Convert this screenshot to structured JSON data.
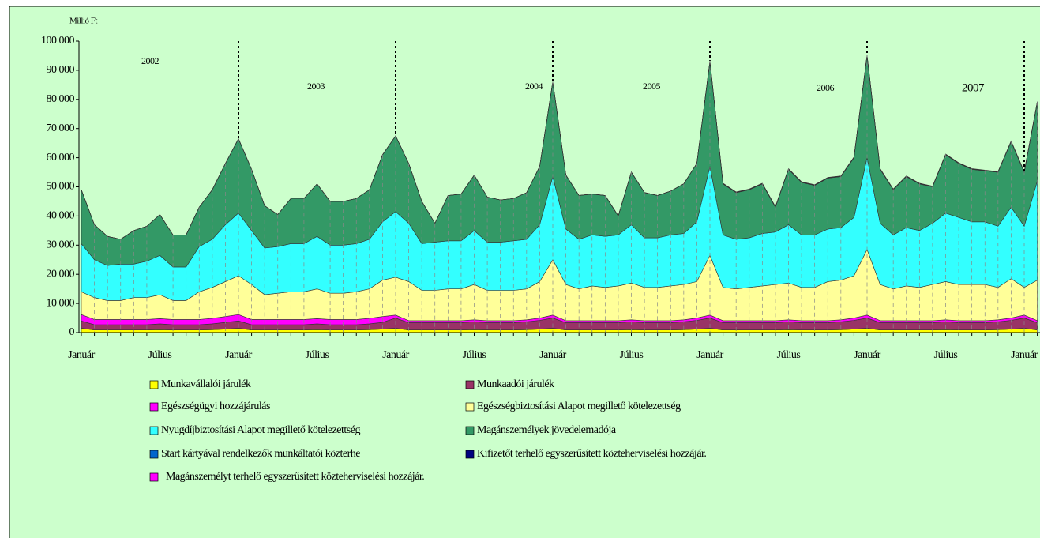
{
  "chart_data": {
    "type": "stacked_area",
    "y_unit": "Millió Ft",
    "categories": [
      "Január",
      null,
      null,
      null,
      null,
      null,
      "Július",
      null,
      null,
      null,
      null,
      null,
      "Január",
      null,
      null,
      null,
      null,
      null,
      "Július",
      null,
      null,
      null,
      null,
      null,
      "Január",
      null,
      null,
      null,
      null,
      null,
      "Július",
      null,
      null,
      null,
      null,
      null,
      "Január",
      null,
      null,
      null,
      null,
      null,
      "Július",
      null,
      null,
      null,
      null,
      null,
      "Január",
      null,
      null,
      null,
      null,
      null,
      "Július",
      null,
      null,
      null,
      null,
      null,
      "Január",
      null,
      null,
      null,
      null,
      null,
      "Július",
      null,
      null,
      null,
      null,
      null,
      "Január",
      null
    ],
    "annotations": [
      "2002",
      "2003",
      "2004",
      "2005",
      "2006",
      "2007"
    ],
    "ylim": [
      0,
      100000
    ],
    "yticks": [
      0,
      {
        "value": 10000,
        "label": "10 000"
      },
      {
        "value": 20000,
        "label": "20 000"
      },
      {
        "value": 30000,
        "label": "30 000"
      },
      {
        "value": 40000,
        "label": "40 000"
      },
      {
        "value": 50000,
        "label": "50 000"
      },
      {
        "value": 60000,
        "label": "60 000"
      },
      {
        "value": 70000,
        "label": "70 000"
      },
      {
        "value": 80000,
        "label": "80 000"
      },
      {
        "value": 90000,
        "label": "90 000"
      },
      {
        "value": 100000,
        "label": "100 000"
      }
    ],
    "series": [
      {
        "name": "Munkavállalói járulék",
        "color": "#ffff00",
        "values": [
          1500,
          900,
          900,
          900,
          900,
          900,
          1000,
          900,
          900,
          900,
          1000,
          1200,
          1500,
          900,
          900,
          900,
          900,
          900,
          1000,
          900,
          900,
          900,
          1000,
          1200,
          1500,
          900,
          900,
          900,
          900,
          900,
          1000,
          900,
          900,
          900,
          1000,
          1200,
          1500,
          900,
          900,
          900,
          900,
          900,
          1000,
          900,
          900,
          900,
          1000,
          1200,
          1500,
          900,
          900,
          900,
          900,
          900,
          1000,
          900,
          900,
          900,
          1000,
          1200,
          1500,
          900,
          900,
          900,
          900,
          900,
          1000,
          900,
          900,
          900,
          1000,
          1200,
          1500,
          900
        ]
      },
      {
        "name": "Munkaadói járulék",
        "color": "#993366",
        "values": [
          2500,
          1800,
          1800,
          1800,
          1800,
          1800,
          2000,
          1800,
          1800,
          1800,
          2000,
          2300,
          2500,
          1800,
          1800,
          1800,
          1800,
          1800,
          2000,
          1800,
          1800,
          1800,
          2000,
          2300,
          3500,
          2500,
          2500,
          2500,
          2500,
          2500,
          2700,
          2500,
          2500,
          2500,
          2700,
          3000,
          3500,
          2500,
          2500,
          2500,
          2500,
          2500,
          2700,
          2500,
          2500,
          2500,
          2700,
          3000,
          3500,
          2500,
          2500,
          2500,
          2500,
          2500,
          2700,
          2500,
          2500,
          2500,
          2700,
          3000,
          3500,
          2500,
          2500,
          2500,
          2500,
          2500,
          2700,
          2500,
          2500,
          2500,
          2700,
          3000,
          3500,
          2500
        ]
      },
      {
        "name": "Egészségügyi hozzájárulás",
        "color": "#ff00ff",
        "values": [
          2200,
          1800,
          1800,
          1800,
          1800,
          1800,
          1800,
          1800,
          1800,
          1800,
          1900,
          2000,
          2200,
          1800,
          1800,
          1800,
          1800,
          1800,
          1800,
          1800,
          1800,
          1800,
          1900,
          2000,
          1000,
          700,
          700,
          700,
          700,
          700,
          700,
          700,
          700,
          700,
          700,
          800,
          1000,
          700,
          700,
          700,
          700,
          700,
          700,
          700,
          700,
          700,
          700,
          800,
          1000,
          700,
          700,
          700,
          700,
          700,
          700,
          700,
          700,
          700,
          700,
          800,
          1000,
          700,
          700,
          700,
          700,
          700,
          700,
          700,
          700,
          700,
          700,
          800,
          1000,
          700
        ]
      },
      {
        "name": "Egészségbiztosítási Alapot megillető kötelezettség",
        "color": "#ffff99",
        "values": [
          7800,
          7500,
          6500,
          6500,
          7500,
          7500,
          8200,
          6500,
          6500,
          9500,
          10600,
          12000,
          13300,
          12000,
          8500,
          9000,
          9500,
          9500,
          10200,
          9000,
          9000,
          9500,
          10100,
          12500,
          13000,
          13400,
          10400,
          10400,
          10900,
          10900,
          12100,
          10400,
          10400,
          10400,
          10600,
          12500,
          19000,
          12400,
          10900,
          11900,
          11400,
          11900,
          12600,
          11400,
          11400,
          11900,
          12100,
          12500,
          20500,
          11400,
          10900,
          11400,
          11900,
          12400,
          12600,
          11400,
          11400,
          13400,
          13600,
          14500,
          22500,
          12400,
          10900,
          11900,
          11400,
          12400,
          13100,
          12400,
          12400,
          12400,
          11100,
          13500,
          9500,
          13900
        ]
      },
      {
        "name": "Nyugdíjbiztosítási Alapot megillető kötelezettség",
        "color": "#33ffff",
        "values": [
          16500,
          13000,
          12000,
          12500,
          11500,
          12500,
          13500,
          11500,
          11500,
          15500,
          16500,
          19500,
          21500,
          18500,
          16000,
          16000,
          16500,
          16500,
          18000,
          16500,
          16500,
          16500,
          17000,
          20000,
          22500,
          20000,
          16000,
          16500,
          16500,
          16500,
          18500,
          16500,
          16500,
          17000,
          17000,
          19500,
          28500,
          19000,
          17000,
          17500,
          17500,
          17500,
          20000,
          17000,
          17000,
          17500,
          17500,
          20500,
          30500,
          18000,
          17000,
          17000,
          18000,
          18000,
          20000,
          18000,
          18000,
          18000,
          18000,
          20000,
          31500,
          21000,
          18500,
          20000,
          19500,
          21000,
          23500,
          23000,
          21500,
          21500,
          21000,
          24500,
          21000,
          34000
        ]
      },
      {
        "name": "Magánszemélyek jövedelemadója",
        "color": "#339966",
        "values": [
          18500,
          12000,
          10000,
          8500,
          11500,
          12000,
          14000,
          11000,
          11000,
          13500,
          17000,
          21000,
          25500,
          21000,
          14500,
          11000,
          15500,
          15500,
          18000,
          15000,
          15000,
          15500,
          17000,
          23000,
          26000,
          20500,
          14500,
          6500,
          15500,
          16000,
          19000,
          15500,
          14500,
          14500,
          16000,
          20000,
          32500,
          18500,
          15000,
          14000,
          14000,
          6500,
          18000,
          15500,
          14500,
          15000,
          17000,
          20000,
          36000,
          17500,
          16000,
          16500,
          17000,
          8500,
          19000,
          18000,
          17000,
          17500,
          17500,
          20500,
          35000,
          18500,
          15500,
          17500,
          16000,
          12500,
          20000,
          18500,
          18000,
          17500,
          18500,
          22500,
          18500,
          27000
        ]
      },
      {
        "name": "Start kártyával rendelkezők munkáltatói közterhe",
        "color": "#0066cc",
        "values": [
          0,
          0,
          0,
          0,
          0,
          0,
          0,
          0,
          0,
          0,
          0,
          0,
          0,
          0,
          0,
          0,
          0,
          0,
          0,
          0,
          0,
          0,
          0,
          0,
          0,
          0,
          0,
          0,
          0,
          0,
          0,
          0,
          0,
          0,
          0,
          0,
          50,
          50,
          50,
          50,
          50,
          50,
          50,
          50,
          50,
          50,
          50,
          50,
          50,
          50,
          50,
          50,
          50,
          50,
          50,
          50,
          50,
          50,
          50,
          50,
          50,
          50,
          50,
          50,
          50,
          50,
          50,
          50,
          50,
          50,
          50,
          50,
          50,
          50
        ]
      },
      {
        "name": "Kifizetőt terhelő egyszerűsített közteherviselési hozzájár.",
        "color": "#000080",
        "values": [
          0,
          0,
          0,
          0,
          0,
          0,
          0,
          0,
          0,
          0,
          0,
          0,
          0,
          0,
          0,
          0,
          0,
          0,
          0,
          0,
          0,
          0,
          0,
          0,
          0,
          0,
          0,
          0,
          0,
          0,
          0,
          0,
          0,
          0,
          0,
          0,
          0,
          0,
          0,
          0,
          0,
          0,
          0,
          0,
          0,
          0,
          0,
          0,
          100,
          100,
          100,
          100,
          100,
          100,
          100,
          100,
          100,
          100,
          100,
          100,
          100,
          100,
          100,
          100,
          100,
          100,
          100,
          100,
          100,
          100,
          100,
          100,
          100,
          100
        ]
      },
      {
        "name": "Magánszemélyt terhelő egyszerűsített közteherviselési hozzájár.",
        "color": "#ff00ff",
        "values": [
          0,
          0,
          0,
          0,
          0,
          0,
          0,
          0,
          0,
          0,
          0,
          0,
          0,
          0,
          0,
          0,
          0,
          0,
          0,
          0,
          0,
          0,
          0,
          0,
          0,
          0,
          0,
          0,
          0,
          0,
          0,
          0,
          0,
          0,
          0,
          0,
          0,
          0,
          0,
          0,
          0,
          0,
          0,
          0,
          0,
          0,
          0,
          0,
          100,
          100,
          100,
          100,
          100,
          100,
          100,
          100,
          100,
          100,
          100,
          100,
          100,
          100,
          100,
          100,
          100,
          100,
          100,
          100,
          100,
          100,
          100,
          100,
          100,
          100
        ]
      }
    ]
  }
}
